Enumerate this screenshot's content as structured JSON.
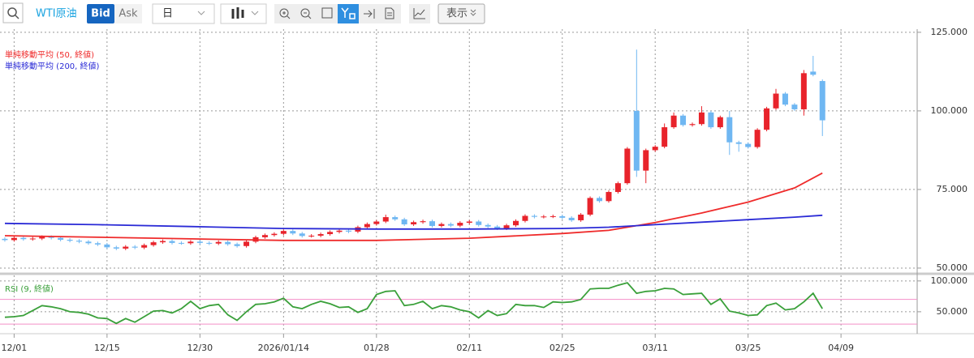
{
  "toolbar": {
    "symbol": "WTI原油",
    "bid": "Bid",
    "ask": "Ask",
    "period": "日",
    "display": "表示"
  },
  "chart_data": [
    {
      "type": "candlestick",
      "candles": {
        "up_color": "#e8232b",
        "down_color": "#6fb7f2",
        "open": [
          59.3,
          58.9,
          59.6,
          59.2,
          59.4,
          59.9,
          59.6,
          59.0,
          58.7,
          58.4,
          57.9,
          57.5,
          56.6,
          56.2,
          56.8,
          56.5,
          57.3,
          58.2,
          58.6,
          58.0,
          57.9,
          58.4,
          58.0,
          57.8,
          58.3,
          57.6,
          57.0,
          58.4,
          59.8,
          60.5,
          60.9,
          61.8,
          61.0,
          60.2,
          60.3,
          60.8,
          61.5,
          61.9,
          61.6,
          63.0,
          64.0,
          64.8,
          66.2,
          65.5,
          63.9,
          64.6,
          64.9,
          63.4,
          64.0,
          63.5,
          64.4,
          64.8,
          63.7,
          63.2,
          62.6,
          63.6,
          65.0,
          66.6,
          66.3,
          66.4,
          66.5,
          66.0,
          65.2,
          67.0,
          72.3,
          71.3,
          74.2,
          77.0,
          100.0,
          81.0,
          87.5,
          88.6,
          94.8,
          98.5,
          95.5,
          95.8,
          99.5,
          94.8,
          98.0,
          90.0,
          89.5,
          88.5,
          94.0,
          100.8,
          105.5,
          102.0,
          100.5,
          112.5,
          109.5
        ],
        "high": [
          59.8,
          60.1,
          60.1,
          59.9,
          60.4,
          60.4,
          60.1,
          59.5,
          59.2,
          58.9,
          58.4,
          58.0,
          57.1,
          57.3,
          57.3,
          57.8,
          58.7,
          59.1,
          59.1,
          58.5,
          58.9,
          58.9,
          58.5,
          58.8,
          58.8,
          58.1,
          58.9,
          60.3,
          61.0,
          61.4,
          62.3,
          62.3,
          61.5,
          60.8,
          61.3,
          62.0,
          62.4,
          62.4,
          63.5,
          64.5,
          65.3,
          67.0,
          66.7,
          66.0,
          65.1,
          65.4,
          65.4,
          64.5,
          64.5,
          64.9,
          65.3,
          65.3,
          64.2,
          63.7,
          64.1,
          65.5,
          67.1,
          67.1,
          66.9,
          67.0,
          67.0,
          66.5,
          67.5,
          72.8,
          72.8,
          74.7,
          77.5,
          88.5,
          119.5,
          88.0,
          89.1,
          96.0,
          99.5,
          99.0,
          96.3,
          101.5,
          100.0,
          98.5,
          100.0,
          90.5,
          90.0,
          94.5,
          101.3,
          107.0,
          106.0,
          102.5,
          113.0,
          117.5,
          110.0
        ],
        "low": [
          58.4,
          58.4,
          58.7,
          58.7,
          58.9,
          59.1,
          58.5,
          58.2,
          57.9,
          57.4,
          57.0,
          56.1,
          55.7,
          55.7,
          56.0,
          56.0,
          56.8,
          57.7,
          57.5,
          57.4,
          57.4,
          57.5,
          57.3,
          57.3,
          57.1,
          56.5,
          56.5,
          57.9,
          59.3,
          60.0,
          60.4,
          60.5,
          59.7,
          59.7,
          59.8,
          60.3,
          61.0,
          61.1,
          61.1,
          62.5,
          63.5,
          64.3,
          65.0,
          63.4,
          63.4,
          64.1,
          62.9,
          62.9,
          63.0,
          63.0,
          63.9,
          63.2,
          62.7,
          62.1,
          62.1,
          63.1,
          64.5,
          65.8,
          65.8,
          65.9,
          65.5,
          64.7,
          64.7,
          66.5,
          70.8,
          70.8,
          73.7,
          76.5,
          79.0,
          77.0,
          87.0,
          88.1,
          94.3,
          95.0,
          95.0,
          95.3,
          94.3,
          94.3,
          86.0,
          87.0,
          88.0,
          88.0,
          93.5,
          100.3,
          101.5,
          100.0,
          98.5,
          111.0,
          92.0
        ],
        "close": [
          58.9,
          59.6,
          59.2,
          59.4,
          59.9,
          59.6,
          59.0,
          58.7,
          58.4,
          57.9,
          57.5,
          56.6,
          56.2,
          56.8,
          56.5,
          57.3,
          58.2,
          58.6,
          58.0,
          57.9,
          58.4,
          58.0,
          57.8,
          58.3,
          57.6,
          57.0,
          58.4,
          59.8,
          60.5,
          60.9,
          61.8,
          61.0,
          60.2,
          60.3,
          60.8,
          61.5,
          61.9,
          61.6,
          63.0,
          64.0,
          64.8,
          66.2,
          65.5,
          63.9,
          64.6,
          64.9,
          63.4,
          64.0,
          63.5,
          64.4,
          64.8,
          63.7,
          63.2,
          62.6,
          63.6,
          65.0,
          66.6,
          66.3,
          66.4,
          66.5,
          66.0,
          65.2,
          67.0,
          72.3,
          71.3,
          74.2,
          77.0,
          88.0,
          81.0,
          87.5,
          88.6,
          94.8,
          98.5,
          95.5,
          95.8,
          99.5,
          94.8,
          98.0,
          90.0,
          89.5,
          88.5,
          94.0,
          100.8,
          105.5,
          102.0,
          100.5,
          112.0,
          111.5,
          97.0
        ]
      },
      "series": [
        {
          "name": "単純移動平均 (50, 終値)",
          "color": "#ef2b2b",
          "x": [
            0,
            10,
            20,
            30,
            40,
            50,
            60,
            65,
            70,
            75,
            80,
            85,
            88
          ],
          "values": [
            60.3,
            59.8,
            59.3,
            58.8,
            58.8,
            59.5,
            61.0,
            62.0,
            64.5,
            67.5,
            71.0,
            75.5,
            80.2
          ]
        },
        {
          "name": "単純移動平均 (200, 終値)",
          "color": "#2b2bd6",
          "x": [
            0,
            10,
            20,
            30,
            40,
            50,
            60,
            65,
            70,
            75,
            80,
            85,
            88
          ],
          "values": [
            64.2,
            63.8,
            63.2,
            62.6,
            62.4,
            62.4,
            62.6,
            63.0,
            63.8,
            64.6,
            65.4,
            66.2,
            66.8
          ]
        }
      ],
      "xlim": [
        -0.52,
        98.2
      ],
      "ylim": [
        48.7,
        126.0
      ],
      "yticks": [
        {
          "value": 125,
          "label": "125.000"
        },
        {
          "value": 100,
          "label": "100.000"
        },
        {
          "value": 75,
          "label": "75.000"
        },
        {
          "value": 50,
          "label": "50.000"
        }
      ],
      "grid": true
    },
    {
      "type": "line",
      "series": [
        {
          "name": "RSI (9, 終値)",
          "color": "#3aa03a",
          "values": [
            41,
            42,
            44,
            52,
            60,
            58,
            55,
            50,
            49,
            46,
            40,
            39,
            31,
            39,
            33,
            42,
            51,
            52,
            48,
            55,
            67,
            55,
            60,
            62,
            45,
            36,
            50,
            62,
            63,
            66,
            72,
            58,
            55,
            62,
            67,
            63,
            57,
            58,
            49,
            55,
            78,
            83,
            84,
            60,
            62,
            67,
            55,
            60,
            58,
            53,
            50,
            40,
            52,
            44,
            47,
            62,
            60,
            60,
            57,
            66,
            65,
            66,
            70,
            87,
            88,
            88,
            93,
            97,
            80,
            83,
            84,
            88,
            87,
            78,
            79,
            80,
            62,
            71,
            51,
            48,
            44,
            45,
            60,
            64,
            53,
            55,
            66,
            80,
            55
          ]
        }
      ],
      "levels": [
        70,
        30
      ],
      "level_color": "#f48fc8",
      "xlim": [
        -0.52,
        98.2
      ],
      "ylim": [
        17,
        109
      ],
      "yticks": [
        {
          "value": 100,
          "label": "100.000"
        },
        {
          "value": 50,
          "label": "50.000"
        }
      ],
      "xticks": [
        {
          "value": 1,
          "label": "12/01"
        },
        {
          "value": 11,
          "label": "12/15"
        },
        {
          "value": 21,
          "label": "12/30"
        },
        {
          "value": 30,
          "label": "2026/01/14"
        },
        {
          "value": 40,
          "label": "01/28"
        },
        {
          "value": 50,
          "label": "02/11"
        },
        {
          "value": 60,
          "label": "02/25"
        },
        {
          "value": 70,
          "label": "03/11"
        },
        {
          "value": 80,
          "label": "03/25"
        },
        {
          "value": 90,
          "label": "04/09"
        }
      ],
      "grid": true
    }
  ]
}
